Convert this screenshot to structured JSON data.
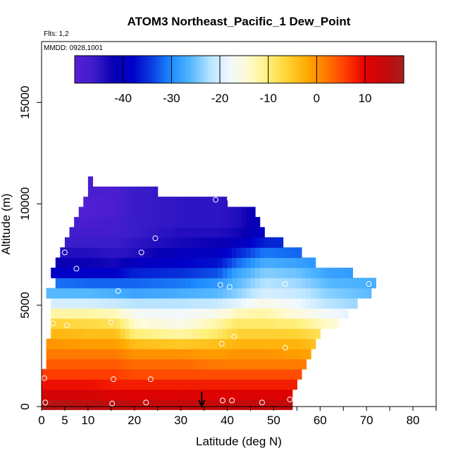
{
  "chart_data": {
    "type": "heatmap",
    "title": "ATOM3 Northeast_Pacific_1 Dew_Point",
    "flights_label": "Flts: 1,2",
    "dates_label": "MMDD: 0928,1001",
    "xlabel": "Latitude (deg N)",
    "ylabel": "Altitude (m)",
    "xlim": [
      0,
      85
    ],
    "ylim": [
      0,
      18000
    ],
    "x_ticks": [
      0,
      5,
      10,
      20,
      30,
      40,
      50,
      60,
      70,
      80
    ],
    "y_ticks": [
      0,
      5000,
      10000,
      15000
    ],
    "colorbar": {
      "range": [
        -50,
        18
      ],
      "ticks": [
        -40,
        -30,
        -20,
        -10,
        0,
        10
      ],
      "colors": [
        "#5a1fd6",
        "#3a1cc9",
        "#0a00b4",
        "#0000c8",
        "#0a3fe0",
        "#1e8cff",
        "#55b8ff",
        "#b8e4ff",
        "#f2f8ff",
        "#fffbd0",
        "#fff07a",
        "#ffd233",
        "#ffaa00",
        "#ff7a00",
        "#ff3c00",
        "#e60000",
        "#c40a0a",
        "#a61e1e"
      ]
    },
    "altitude_bins_m": [
      100,
      600,
      1100,
      1600,
      2100,
      2600,
      3100,
      3600,
      4100,
      4600,
      5100,
      5600,
      6100,
      6600,
      7100,
      7600,
      8100,
      8600,
      9100,
      9600,
      10100,
      10600,
      11100
    ],
    "row_extent_deg_n": [
      [
        0,
        54
      ],
      [
        0,
        54
      ],
      [
        0,
        55
      ],
      [
        0,
        56
      ],
      [
        1,
        57
      ],
      [
        1,
        58
      ],
      [
        1,
        59
      ],
      [
        2,
        60
      ],
      [
        2,
        64
      ],
      [
        2,
        66
      ],
      [
        2,
        68
      ],
      [
        1,
        71
      ],
      [
        3,
        72
      ],
      [
        2,
        67
      ],
      [
        3,
        59
      ],
      [
        4,
        56
      ],
      [
        5,
        52
      ],
      [
        6,
        48
      ],
      [
        7,
        47
      ],
      [
        8,
        46
      ],
      [
        9,
        40
      ],
      [
        10,
        25
      ],
      [
        10,
        11
      ]
    ],
    "dew_point_profile_c": [
      {
        "lat": 0,
        "values": [
          16,
          12,
          9,
          6,
          4,
          2,
          0,
          -3,
          -6,
          -12,
          -20,
          -26,
          -31,
          -38,
          -42,
          -44,
          -46,
          -47,
          -48,
          -49,
          -49,
          -48,
          -48
        ]
      },
      {
        "lat": 10,
        "values": [
          15,
          12,
          9,
          6,
          4,
          2,
          -1,
          -4,
          -7,
          -12,
          -20,
          -26,
          -32,
          -38,
          -42,
          -44,
          -46,
          -47,
          -48,
          -49,
          -49,
          -48,
          -48
        ]
      },
      {
        "lat": 16,
        "values": [
          15,
          11,
          8,
          6,
          4,
          2,
          -1,
          -4,
          -8,
          -13,
          -21,
          -27,
          -32,
          -38,
          -43,
          -45,
          -46,
          -47,
          -47,
          -48,
          -48,
          -48,
          -48
        ]
      },
      {
        "lat": 20,
        "values": [
          14,
          11,
          8,
          5,
          3,
          0,
          -4,
          -10,
          -14,
          -17,
          -22,
          -28,
          -32,
          -36,
          -40,
          -44,
          -45,
          -46,
          -46,
          -46,
          -46,
          -46,
          -46
        ]
      },
      {
        "lat": 30,
        "values": [
          14,
          11,
          8,
          5,
          3,
          0,
          -5,
          -12,
          -16,
          -18,
          -22,
          -27,
          -31,
          -35,
          -38,
          -40,
          -43,
          -44,
          -45,
          -45,
          -45,
          -45,
          -45
        ]
      },
      {
        "lat": 38,
        "values": [
          14,
          11,
          8,
          5,
          2,
          -1,
          -4,
          -9,
          -12,
          -16,
          -21,
          -26,
          -29,
          -33,
          -37,
          -40,
          -42,
          -44,
          -45,
          -45,
          -45,
          -45,
          -45
        ]
      },
      {
        "lat": 42,
        "values": [
          14,
          11,
          8,
          5,
          2,
          0,
          -3,
          -6,
          -9,
          -13,
          -19,
          -24,
          -26,
          -28,
          -32,
          -36,
          -40,
          -43,
          -44,
          -44,
          -44,
          -44,
          -44
        ]
      },
      {
        "lat": 48,
        "values": [
          14,
          11,
          8,
          5,
          2,
          0,
          -3,
          -6,
          -9,
          -12,
          -16,
          -20,
          -22,
          -24,
          -27,
          -31,
          -36,
          -39,
          -40,
          -40,
          -40,
          -40,
          -40
        ]
      },
      {
        "lat": 55,
        "values": [
          14,
          11,
          8,
          5,
          2,
          -1,
          -3,
          -6,
          -10,
          -15,
          -18,
          -21,
          -23,
          -25,
          -28,
          -32,
          -35,
          -38,
          -40,
          -40,
          -40,
          -40,
          -40
        ]
      },
      {
        "lat": 62,
        "values": [
          13,
          10,
          7,
          4,
          1,
          -2,
          -5,
          -9,
          -14,
          -18,
          -22,
          -24,
          -26,
          -28,
          -30,
          -33,
          -35,
          -38,
          -40,
          -40,
          -40,
          -40,
          -40
        ]
      },
      {
        "lat": 72,
        "values": [
          13,
          10,
          7,
          4,
          1,
          -2,
          -5,
          -10,
          -15,
          -20,
          -24,
          -26,
          -27,
          -29,
          -31,
          -33,
          -35,
          -38,
          -40,
          -40,
          -40,
          -40,
          -40
        ]
      }
    ],
    "observation_points": [
      {
        "lat": 0.8,
        "alt": 200
      },
      {
        "lat": 0.6,
        "alt": 1400
      },
      {
        "lat": 2.5,
        "alt": 4100
      },
      {
        "lat": 5.5,
        "alt": 4000
      },
      {
        "lat": 2.8,
        "alt": 7500
      },
      {
        "lat": 5,
        "alt": 7600
      },
      {
        "lat": 7.5,
        "alt": 6800
      },
      {
        "lat": 15,
        "alt": 4150
      },
      {
        "lat": 16.5,
        "alt": 5700
      },
      {
        "lat": 15.5,
        "alt": 1350
      },
      {
        "lat": 15.2,
        "alt": 150
      },
      {
        "lat": 21.5,
        "alt": 7600
      },
      {
        "lat": 24.5,
        "alt": 8300
      },
      {
        "lat": 22,
        "alt": 4050
      },
      {
        "lat": 23.5,
        "alt": 1350
      },
      {
        "lat": 22.5,
        "alt": 200
      },
      {
        "lat": 37.5,
        "alt": 10200
      },
      {
        "lat": 40.5,
        "alt": 10250
      },
      {
        "lat": 38.5,
        "alt": 6000
      },
      {
        "lat": 40.5,
        "alt": 5900
      },
      {
        "lat": 41.5,
        "alt": 3450
      },
      {
        "lat": 38.8,
        "alt": 3100
      },
      {
        "lat": 39,
        "alt": 300
      },
      {
        "lat": 41,
        "alt": 300
      },
      {
        "lat": 47.5,
        "alt": 200
      },
      {
        "lat": 53.5,
        "alt": 350
      },
      {
        "lat": 52.5,
        "alt": 2900
      },
      {
        "lat": 52.5,
        "alt": 6050
      },
      {
        "lat": 70.5,
        "alt": 6050
      }
    ],
    "marker": {
      "lat": 34.5,
      "label": "arrow"
    }
  }
}
